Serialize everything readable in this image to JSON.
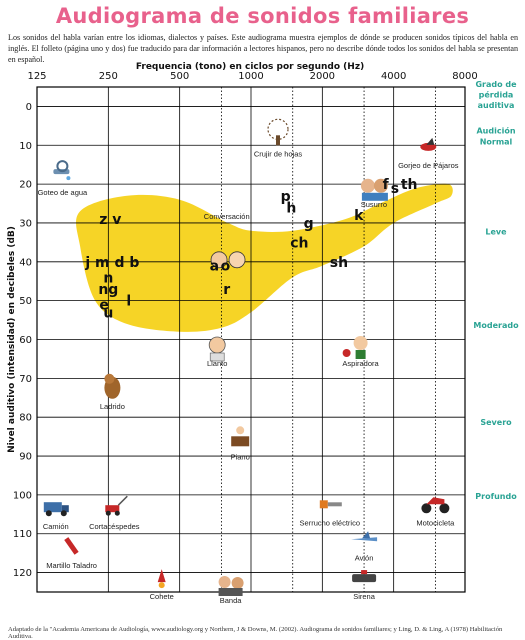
{
  "page": {
    "title": "Audiograma de sonidos familiares",
    "intro": "Los sonidos del habla varían entre los idiomas, dialectos y países. Este audiograma muestra ejemplos de dónde se producen sonidos típicos del habla en inglés. El folleto (página uno y dos) fue traducido para dar información a lectores hispanos, pero no describe dónde todos los sonidos del habla se presentan en español.",
    "credit": "Adaptado de la \"Academia Americana de Audiología, www.audiology.org y Northern, J & Downs, M. (2002). Audiograma de sonidos familiares; y Ling, D. & Ling, A (1978) Habilitación Auditiva."
  },
  "colors": {
    "title": "#e8618c",
    "banana": "#f6d21a",
    "degree_labels": "#2aa394",
    "grid": "#000000"
  },
  "chart_data": {
    "type": "scatter",
    "title": "Audiograma de sonidos familiares",
    "xlabel": "Frequencia (tono) en ciclos por segundo (Hz)",
    "ylabel": "Nivel auditivo (intensidad) en decibeles (dB)",
    "x_scale": "log",
    "x_ticks": [
      "125",
      "250",
      "500",
      "1000",
      "2000",
      "4000",
      "8000"
    ],
    "x_tick_values": [
      125,
      250,
      500,
      1000,
      2000,
      4000,
      8000
    ],
    "xlim": [
      125,
      8000
    ],
    "y_ticks": [
      0,
      10,
      20,
      30,
      40,
      50,
      60,
      70,
      80,
      90,
      100,
      110,
      120
    ],
    "ylim": [
      -5,
      125
    ],
    "y_inverted": true,
    "grid": true,
    "dotted_x_lines": [
      750,
      1500,
      3000,
      6000
    ],
    "degree_header": "Grado de pérdida auditiva",
    "degrees": [
      {
        "label": "Audición Normal",
        "db": 7
      },
      {
        "label": "Leve",
        "db": 33
      },
      {
        "label": "Moderado",
        "db": 57
      },
      {
        "label": "Severo",
        "db": 82
      },
      {
        "label": "Profundo",
        "db": 101
      }
    ],
    "speech_banana": {
      "label": "Conversación",
      "points": [
        [
          190,
          36
        ],
        [
          220,
          50
        ],
        [
          300,
          56
        ],
        [
          500,
          58
        ],
        [
          750,
          57
        ],
        [
          1000,
          53
        ],
        [
          1500,
          44
        ],
        [
          2000,
          41
        ],
        [
          3000,
          36
        ],
        [
          4000,
          30
        ],
        [
          6000,
          25
        ],
        [
          7000,
          23
        ],
        [
          6800,
          20
        ],
        [
          5000,
          21
        ],
        [
          3500,
          25
        ],
        [
          2500,
          29
        ],
        [
          1500,
          32
        ],
        [
          1000,
          32
        ],
        [
          800,
          30
        ],
        [
          500,
          24
        ],
        [
          300,
          23
        ],
        [
          190,
          27
        ]
      ]
    },
    "speech_sounds": [
      {
        "text": "z v",
        "hz": 255,
        "db": 29
      },
      {
        "text": "j m d b",
        "hz": 260,
        "db": 40
      },
      {
        "text": "n",
        "hz": 250,
        "db": 44
      },
      {
        "text": "ng",
        "hz": 250,
        "db": 47
      },
      {
        "text": "e",
        "hz": 240,
        "db": 51
      },
      {
        "text": "l",
        "hz": 305,
        "db": 50
      },
      {
        "text": "u",
        "hz": 250,
        "db": 53
      },
      {
        "text": "a",
        "hz": 700,
        "db": 41
      },
      {
        "text": "o",
        "hz": 780,
        "db": 41
      },
      {
        "text": "r",
        "hz": 790,
        "db": 47
      },
      {
        "text": "p",
        "hz": 1400,
        "db": 23
      },
      {
        "text": "h",
        "hz": 1480,
        "db": 26
      },
      {
        "text": "g",
        "hz": 1750,
        "db": 30
      },
      {
        "text": "ch",
        "hz": 1600,
        "db": 35
      },
      {
        "text": "k",
        "hz": 2850,
        "db": 28
      },
      {
        "text": "sh",
        "hz": 2350,
        "db": 40
      },
      {
        "text": "f",
        "hz": 3700,
        "db": 20
      },
      {
        "text": "s",
        "hz": 4050,
        "db": 21
      },
      {
        "text": "th",
        "hz": 4650,
        "db": 20
      }
    ],
    "sound_items": [
      {
        "label": "Goteo de agua",
        "hz": 160,
        "db": 20,
        "icon": "faucet-icon"
      },
      {
        "label": "Crujir de hojas",
        "hz": 1300,
        "db": 10,
        "icon": "tree-icon"
      },
      {
        "label": "Gorjeo de Pájaros",
        "hz": 5600,
        "db": 13,
        "icon": "bird-icon"
      },
      {
        "label": "Susurro",
        "hz": 3300,
        "db": 23,
        "icon": "whisper-icon"
      },
      {
        "label": "Llanto",
        "hz": 720,
        "db": 64,
        "icon": "crying-baby-icon"
      },
      {
        "label": "Aspiradora",
        "hz": 2900,
        "db": 64,
        "icon": "vacuum-icon"
      },
      {
        "label": "Ladrido",
        "hz": 260,
        "db": 75,
        "icon": "dog-icon"
      },
      {
        "label": "Piano",
        "hz": 900,
        "db": 88,
        "icon": "piano-icon"
      },
      {
        "label": "Camión",
        "hz": 150,
        "db": 106,
        "icon": "truck-icon"
      },
      {
        "label": "Cortacéspedes",
        "hz": 265,
        "db": 106,
        "icon": "lawnmower-icon"
      },
      {
        "label": "Serrucho eléctrico",
        "hz": 2150,
        "db": 105,
        "icon": "chainsaw-icon"
      },
      {
        "label": "Motocicleta",
        "hz": 6000,
        "db": 105,
        "icon": "motorcycle-icon"
      },
      {
        "label": "Martillo Taladro",
        "hz": 175,
        "db": 116,
        "icon": "jackhammer-icon"
      },
      {
        "label": "Cohete",
        "hz": 420,
        "db": 124,
        "icon": "rocket-icon"
      },
      {
        "label": "Banda",
        "hz": 820,
        "db": 125,
        "icon": "band-icon"
      },
      {
        "label": "Avión",
        "hz": 3000,
        "db": 114,
        "icon": "airplane-icon"
      },
      {
        "label": "Sirena",
        "hz": 3000,
        "db": 124,
        "icon": "siren-icon"
      }
    ]
  }
}
